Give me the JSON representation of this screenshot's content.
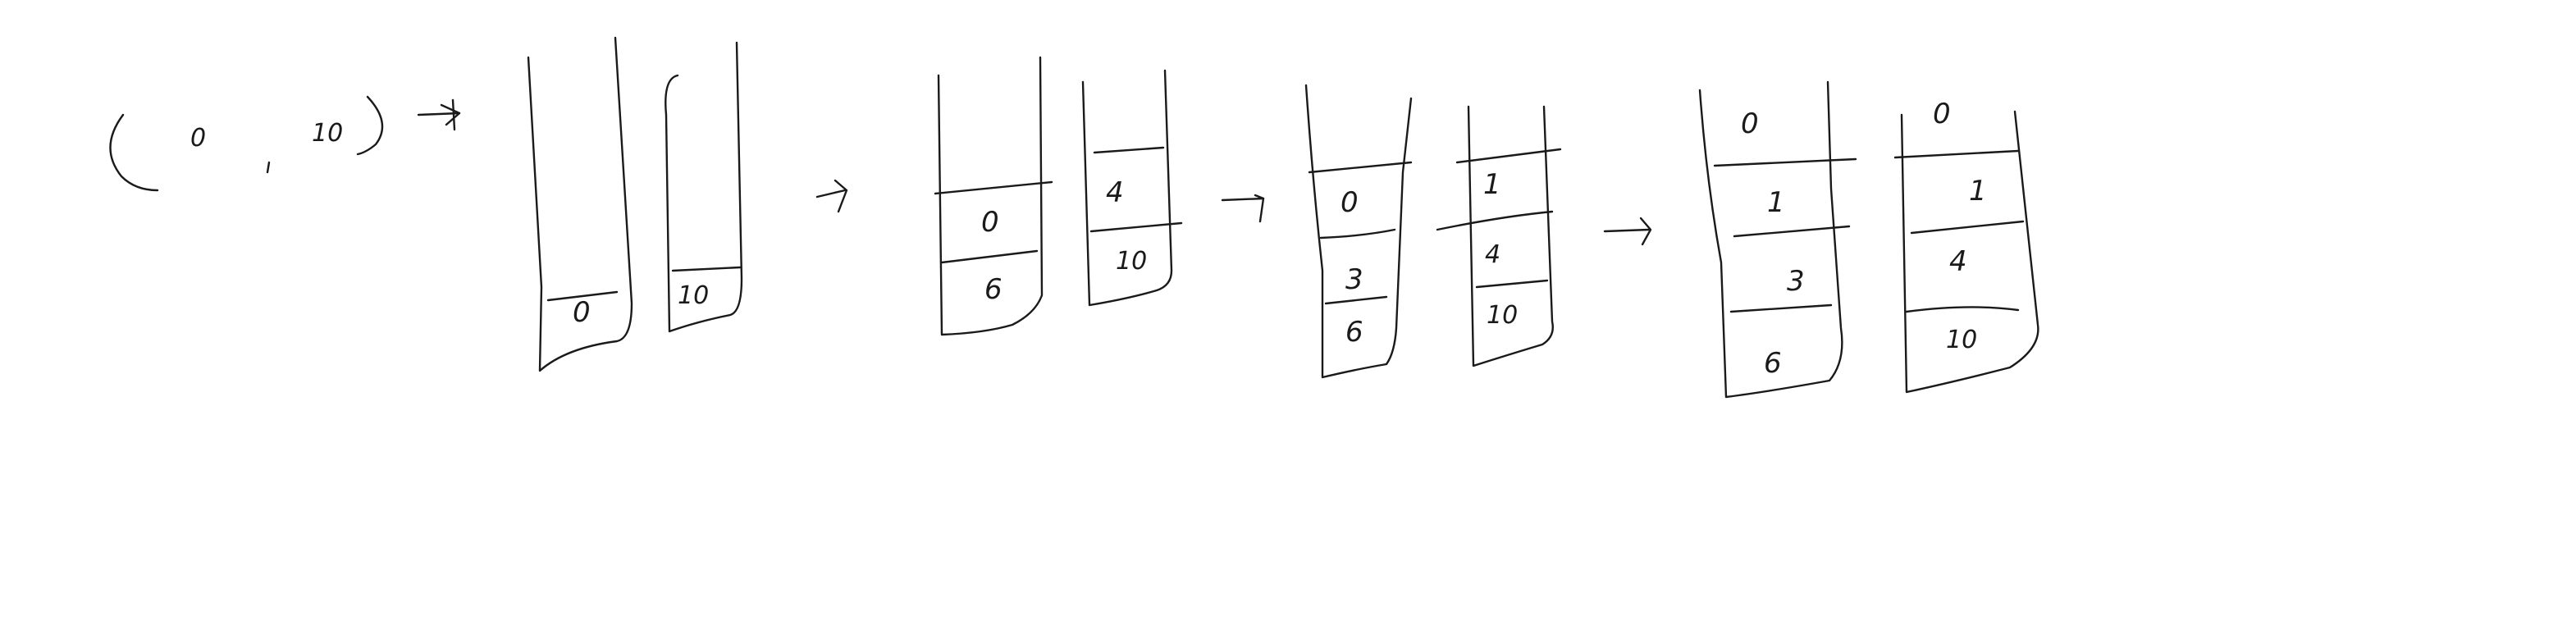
{
  "input": {
    "first": "0",
    "second": "10"
  },
  "stages": [
    {
      "left_stack": [
        "0"
      ],
      "right_stack": [
        "10"
      ]
    },
    {
      "left_stack": [
        "0",
        "6"
      ],
      "right_stack": [
        "4",
        "10"
      ]
    },
    {
      "left_stack": [
        "0",
        "3",
        "6"
      ],
      "right_stack": [
        "1",
        "4",
        "10"
      ]
    },
    {
      "left_stack": [
        "0",
        "1",
        "3",
        "6"
      ],
      "right_stack": [
        "0",
        "1",
        "4",
        "10"
      ]
    }
  ]
}
